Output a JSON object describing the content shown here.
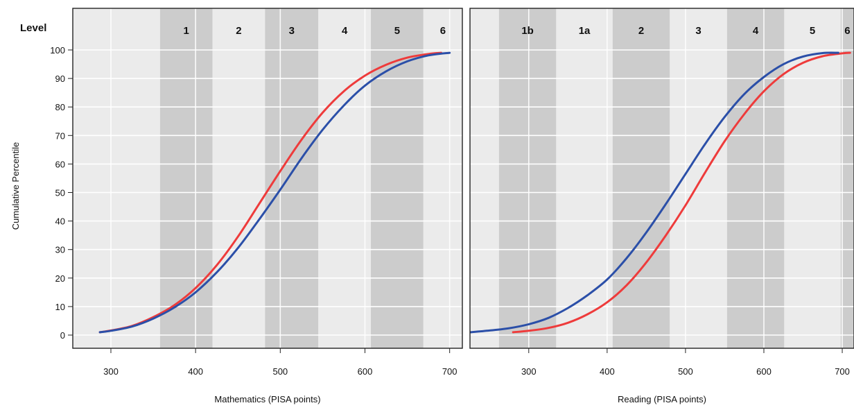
{
  "chart_data": {
    "type": "line",
    "level_title": "Level",
    "ylabel": "Cumulative Percentile",
    "ylim": [
      0,
      100
    ],
    "yticks": [
      0,
      10,
      20,
      30,
      40,
      50,
      60,
      70,
      80,
      90,
      100
    ],
    "grid": true,
    "colors": {
      "series_a": "#ee3b3b",
      "series_b": "#2b4fa8",
      "band_light": "#ebebeb",
      "band_dark": "#cccccc"
    },
    "panels": [
      {
        "id": "math",
        "xlabel": "Mathematics (PISA points)",
        "xlim": [
          255,
          715
        ],
        "xticks": [
          300,
          400,
          500,
          600,
          700
        ],
        "levels": [
          {
            "label": "",
            "from": 255,
            "to": 358,
            "shade": "light"
          },
          {
            "label": "1",
            "from": 358,
            "to": 420,
            "shade": "dark"
          },
          {
            "label": "2",
            "from": 420,
            "to": 482,
            "shade": "light"
          },
          {
            "label": "3",
            "from": 482,
            "to": 545,
            "shade": "dark"
          },
          {
            "label": "4",
            "from": 545,
            "to": 607,
            "shade": "light"
          },
          {
            "label": "5",
            "from": 607,
            "to": 669,
            "shade": "dark"
          },
          {
            "label": "6",
            "from": 669,
            "to": 715,
            "shade": "light"
          }
        ],
        "series": [
          {
            "color_key": "series_a",
            "x": [
              287,
              300,
              325,
              350,
              375,
              400,
              425,
              450,
              475,
              500,
              525,
              550,
              575,
              600,
              625,
              650,
              675,
              690
            ],
            "y": [
              1,
              1.6,
              3.2,
              6.3,
              10.5,
              16.5,
              24.5,
              34.5,
              46,
              57.5,
              68.5,
              78,
              85.5,
              91,
              94.8,
              97.3,
              98.6,
              99
            ]
          },
          {
            "color_key": "series_b",
            "x": [
              287,
              300,
              325,
              350,
              375,
              400,
              425,
              450,
              475,
              500,
              525,
              550,
              575,
              600,
              625,
              650,
              675,
              700
            ],
            "y": [
              1,
              1.5,
              3,
              5.8,
              9.7,
              15,
              22,
              30.5,
              40.5,
              51,
              62,
              72,
              80.5,
              87.5,
              92.5,
              96,
              98.1,
              99
            ]
          }
        ]
      },
      {
        "id": "reading",
        "xlabel": "Reading (PISA points)",
        "xlim": [
          225,
          715
        ],
        "xticks": [
          300,
          400,
          500,
          600,
          700
        ],
        "levels": [
          {
            "label": "",
            "from": 225,
            "to": 262,
            "shade": "light"
          },
          {
            "label": "1b",
            "from": 262,
            "to": 335,
            "shade": "dark"
          },
          {
            "label": "1a",
            "from": 335,
            "to": 407,
            "shade": "light"
          },
          {
            "label": "2",
            "from": 407,
            "to": 480,
            "shade": "dark"
          },
          {
            "label": "3",
            "from": 480,
            "to": 553,
            "shade": "light"
          },
          {
            "label": "4",
            "from": 553,
            "to": 626,
            "shade": "dark"
          },
          {
            "label": "5",
            "from": 626,
            "to": 698,
            "shade": "light"
          },
          {
            "label": "6",
            "from": 698,
            "to": 715,
            "shade": "dark"
          }
        ],
        "series": [
          {
            "color_key": "series_a",
            "x": [
              280,
              300,
              325,
              350,
              375,
              400,
              425,
              450,
              475,
              500,
              525,
              550,
              575,
              600,
              625,
              650,
              675,
              700,
              710
            ],
            "y": [
              1,
              1.5,
              2.5,
              4.3,
              7.3,
              11.5,
              17.5,
              25.5,
              35,
              45.5,
              57,
              68,
              77.5,
              85.5,
              91.5,
              95.5,
              97.8,
              98.8,
              99
            ]
          },
          {
            "color_key": "series_b",
            "x": [
              225,
              250,
              275,
              300,
              325,
              350,
              375,
              400,
              425,
              450,
              475,
              500,
              525,
              550,
              575,
              600,
              625,
              650,
              675,
              695
            ],
            "y": [
              1,
              1.6,
              2.4,
              3.8,
              6,
              9.5,
              14,
              19.5,
              27,
              36,
              46,
              56.5,
              67,
              76.5,
              84.5,
              90.5,
              95,
              97.7,
              98.9,
              99
            ]
          }
        ]
      }
    ]
  }
}
